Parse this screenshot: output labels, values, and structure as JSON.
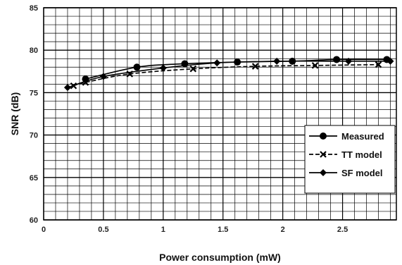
{
  "chart_data": {
    "type": "line",
    "title": "",
    "xlabel": "Power consumption (mW)",
    "ylabel": "SNR (dB)",
    "xlim": [
      0,
      2.95
    ],
    "ylim": [
      60,
      85
    ],
    "x_ticks": [
      "0",
      "0.5",
      "1",
      "1.5",
      "2",
      "2.5"
    ],
    "y_ticks": [
      "60",
      "65",
      "70",
      "75",
      "80",
      "85"
    ],
    "grid": true,
    "legend_position": "bottom-right",
    "series": [
      {
        "name": "Measured",
        "marker": "circle",
        "dash": "solid",
        "color": "#000000",
        "x": [
          0.35,
          0.78,
          1.18,
          1.62,
          2.08,
          2.45,
          2.87
        ],
        "y": [
          76.6,
          78.0,
          78.4,
          78.6,
          78.7,
          78.9,
          78.9
        ]
      },
      {
        "name": "TT model",
        "marker": "x",
        "dash": "dashed",
        "color": "#000000",
        "x": [
          0.25,
          0.35,
          0.72,
          1.25,
          1.77,
          2.27,
          2.8
        ],
        "y": [
          75.8,
          76.2,
          77.2,
          77.8,
          78.1,
          78.2,
          78.3
        ]
      },
      {
        "name": "SF model",
        "marker": "diamond",
        "dash": "solid",
        "color": "#000000",
        "x": [
          0.2,
          0.5,
          1.0,
          1.45,
          1.95,
          2.55,
          2.9
        ],
        "y": [
          75.6,
          76.9,
          77.9,
          78.5,
          78.7,
          78.7,
          78.7
        ]
      }
    ]
  }
}
